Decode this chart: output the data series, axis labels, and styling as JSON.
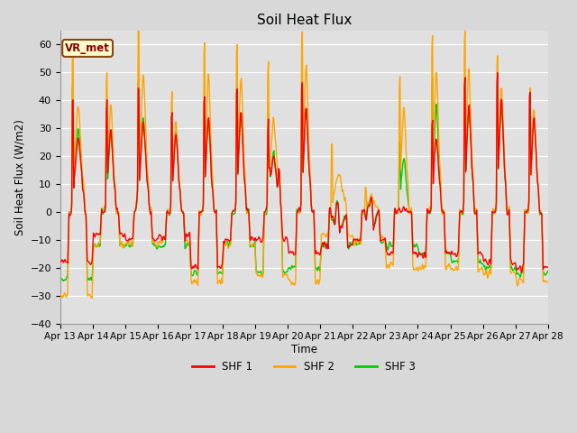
{
  "title": "Soil Heat Flux",
  "ylabel": "Soil Heat Flux (W/m2)",
  "xlabel": "Time",
  "annotation": "VR_met",
  "ylim": [
    -40,
    65
  ],
  "yticks": [
    -40,
    -30,
    -20,
    -10,
    0,
    10,
    20,
    30,
    40,
    50,
    60
  ],
  "colors": {
    "SHF 1": "#ff0000",
    "SHF 2": "#ffa500",
    "SHF 3": "#00cc00"
  },
  "bg_color": "#e0e0e0",
  "linewidth": 1.0,
  "x_tick_labels": [
    "Apr 13",
    "Apr 14",
    "Apr 15",
    "Apr 16",
    "Apr 17",
    "Apr 18",
    "Apr 19",
    "Apr 20",
    "Apr 21",
    "Apr 22",
    "Apr 23",
    "Apr 24",
    "Apr 25",
    "Apr 26",
    "Apr 27",
    "Apr 28"
  ],
  "legend_entries": [
    "SHF 1",
    "SHF 2",
    "SHF 3"
  ]
}
